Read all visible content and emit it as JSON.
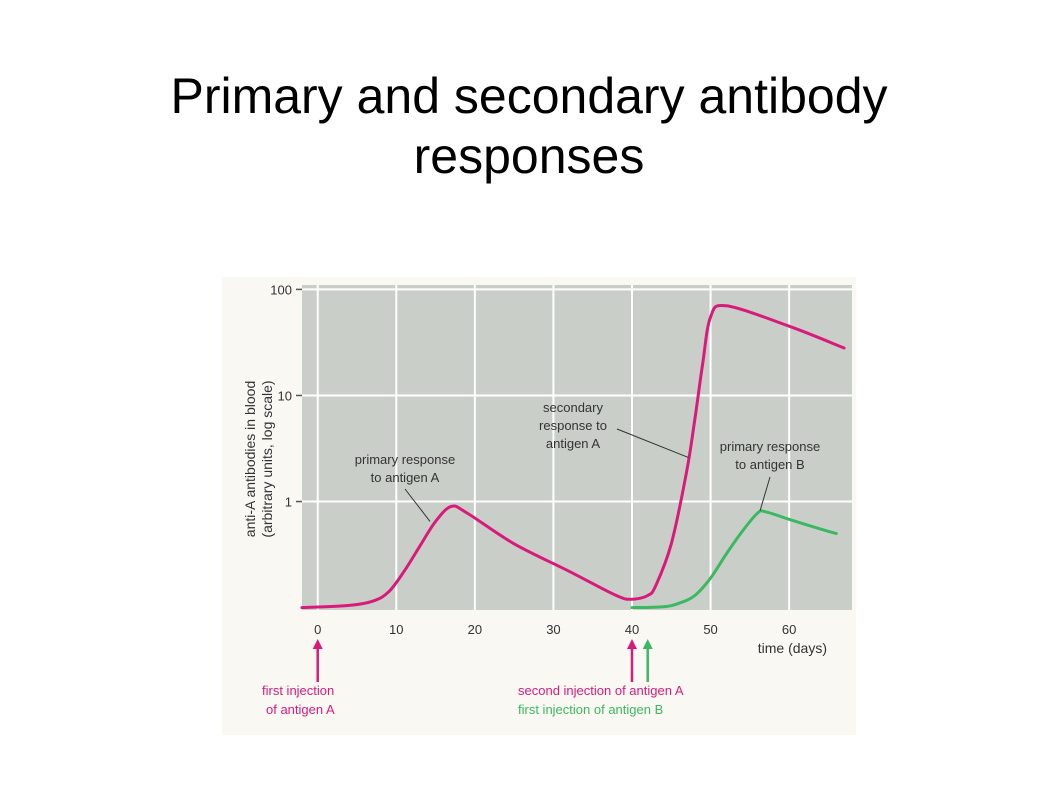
{
  "slide": {
    "title_line1": "Primary and secondary antibody",
    "title_line2": "responses"
  },
  "chart_data": {
    "type": "line",
    "ylabel_line1": "anti-A antibodies in blood",
    "ylabel_line2": "(arbitrary units, log scale)",
    "xlabel": "time (days)",
    "x_ticks": [
      "0",
      "10",
      "20",
      "30",
      "40",
      "50",
      "60"
    ],
    "x_tick_values": [
      0,
      10,
      20,
      30,
      40,
      50,
      60
    ],
    "y_ticks": [
      "1",
      "10",
      "100"
    ],
    "y_tick_values": [
      1,
      10,
      100
    ],
    "y_scale": "log",
    "xlim": [
      -2,
      68
    ],
    "ylim": [
      0.095,
      110
    ],
    "grid": true,
    "colors": {
      "antigen_A": "#d81b7a",
      "antigen_B": "#3cb862",
      "plot_bg": "#c9cfc8",
      "grid": "#ffffff"
    },
    "series": [
      {
        "key": "antigen_A",
        "x": [
          -2,
          4,
          7,
          9,
          11,
          13,
          15,
          17,
          19,
          25,
          32,
          38,
          40,
          42,
          43,
          45,
          47,
          48,
          49,
          50,
          52,
          60,
          67
        ],
        "y": [
          0.1,
          0.105,
          0.115,
          0.14,
          0.22,
          0.38,
          0.65,
          0.9,
          0.78,
          0.4,
          0.22,
          0.13,
          0.12,
          0.13,
          0.16,
          0.4,
          2.0,
          6.0,
          20,
          55,
          70,
          45,
          28
        ]
      },
      {
        "key": "antigen_B",
        "x": [
          40,
          44,
          46,
          48,
          50,
          52,
          54,
          56,
          57,
          60,
          64,
          66
        ],
        "y": [
          0.1,
          0.102,
          0.11,
          0.13,
          0.19,
          0.32,
          0.52,
          0.78,
          0.8,
          0.68,
          0.55,
          0.5
        ]
      }
    ],
    "annotations": {
      "primary_A_line1": "primary response",
      "primary_A_line2": "to antigen A",
      "secondary_A_line1": "secondary",
      "secondary_A_line2": "response to",
      "secondary_A_line3": "antigen A",
      "primary_B_line1": "primary response",
      "primary_B_line2": "to antigen B",
      "first_injection_line1": "first injection",
      "first_injection_line2": "of antigen A",
      "second_injection_A": "second injection of antigen A",
      "first_injection_B": "first injection of antigen B"
    },
    "injection_days": {
      "first_A": 0,
      "second_A": 40,
      "first_B": 42
    }
  }
}
